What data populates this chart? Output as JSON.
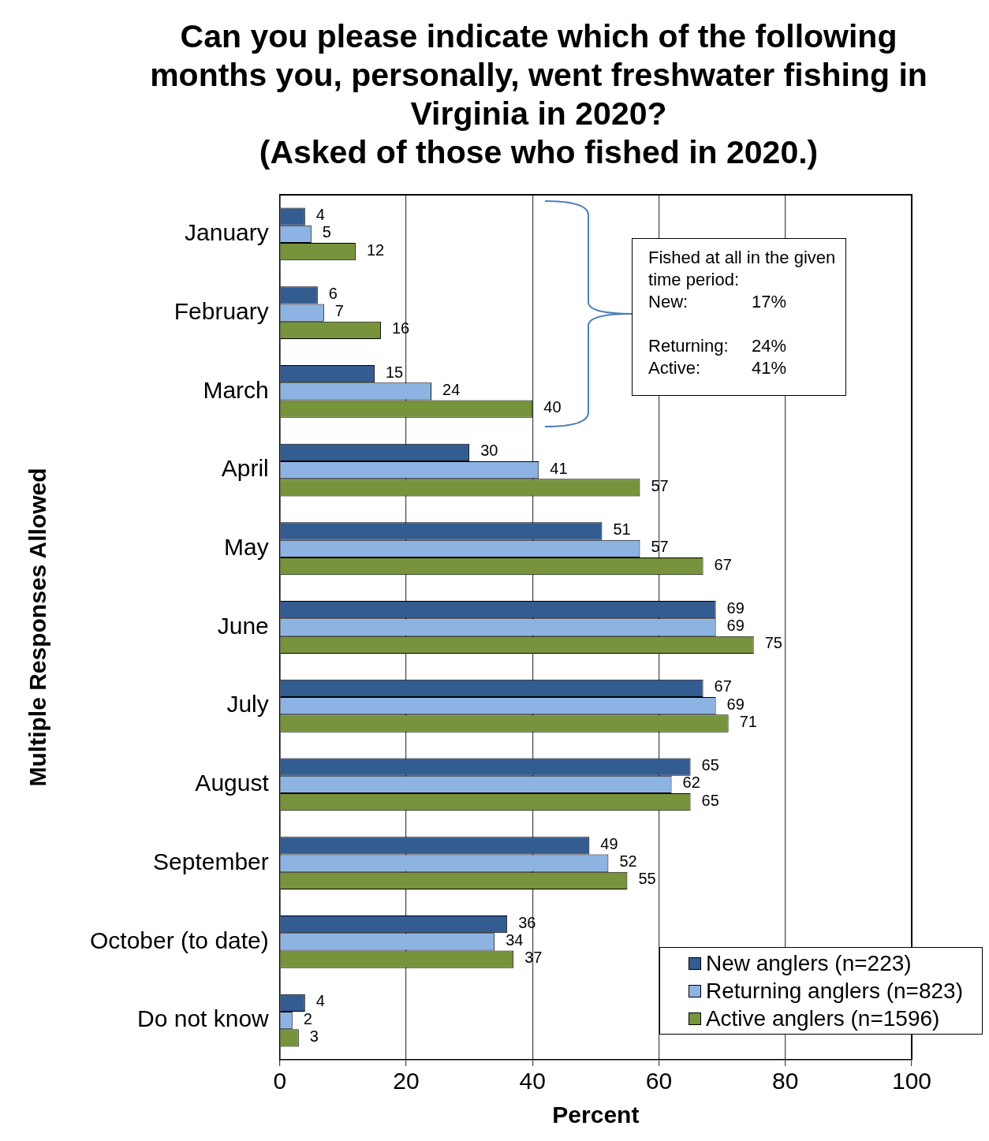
{
  "chart_data": {
    "type": "bar",
    "orientation": "horizontal",
    "title": "Can you please indicate which of the following months you, personally, went freshwater fishing in Virginia in 2020?\n(Asked of those who fished in 2020.)",
    "xlabel": "Percent",
    "ylabel": "Multiple Responses Allowed",
    "categories": [
      "January",
      "February",
      "March",
      "April",
      "May",
      "June",
      "July",
      "August",
      "September",
      "October (to date)",
      "Do not know"
    ],
    "series": [
      {
        "name": "New anglers (n=223)",
        "color": "#335c90",
        "values": [
          4,
          6,
          15,
          30,
          51,
          69,
          67,
          65,
          49,
          36,
          4
        ]
      },
      {
        "name": "Returning anglers (n=823)",
        "color": "#8db3e2",
        "values": [
          5,
          7,
          24,
          41,
          57,
          69,
          69,
          62,
          52,
          34,
          2
        ]
      },
      {
        "name": "Active anglers (n=1596)",
        "color": "#77933c",
        "values": [
          12,
          16,
          40,
          57,
          67,
          75,
          71,
          65,
          55,
          37,
          3
        ]
      }
    ],
    "xlim": [
      0,
      100
    ],
    "xticks": [
      0,
      20,
      40,
      60,
      80,
      100
    ],
    "grid": "x",
    "legend": "bottom right",
    "data_labels": true,
    "annotations": [
      "Fished at all in the given time period:\nNew:\t17%\nReturning:\t24%\nActive:\t41%"
    ]
  }
}
